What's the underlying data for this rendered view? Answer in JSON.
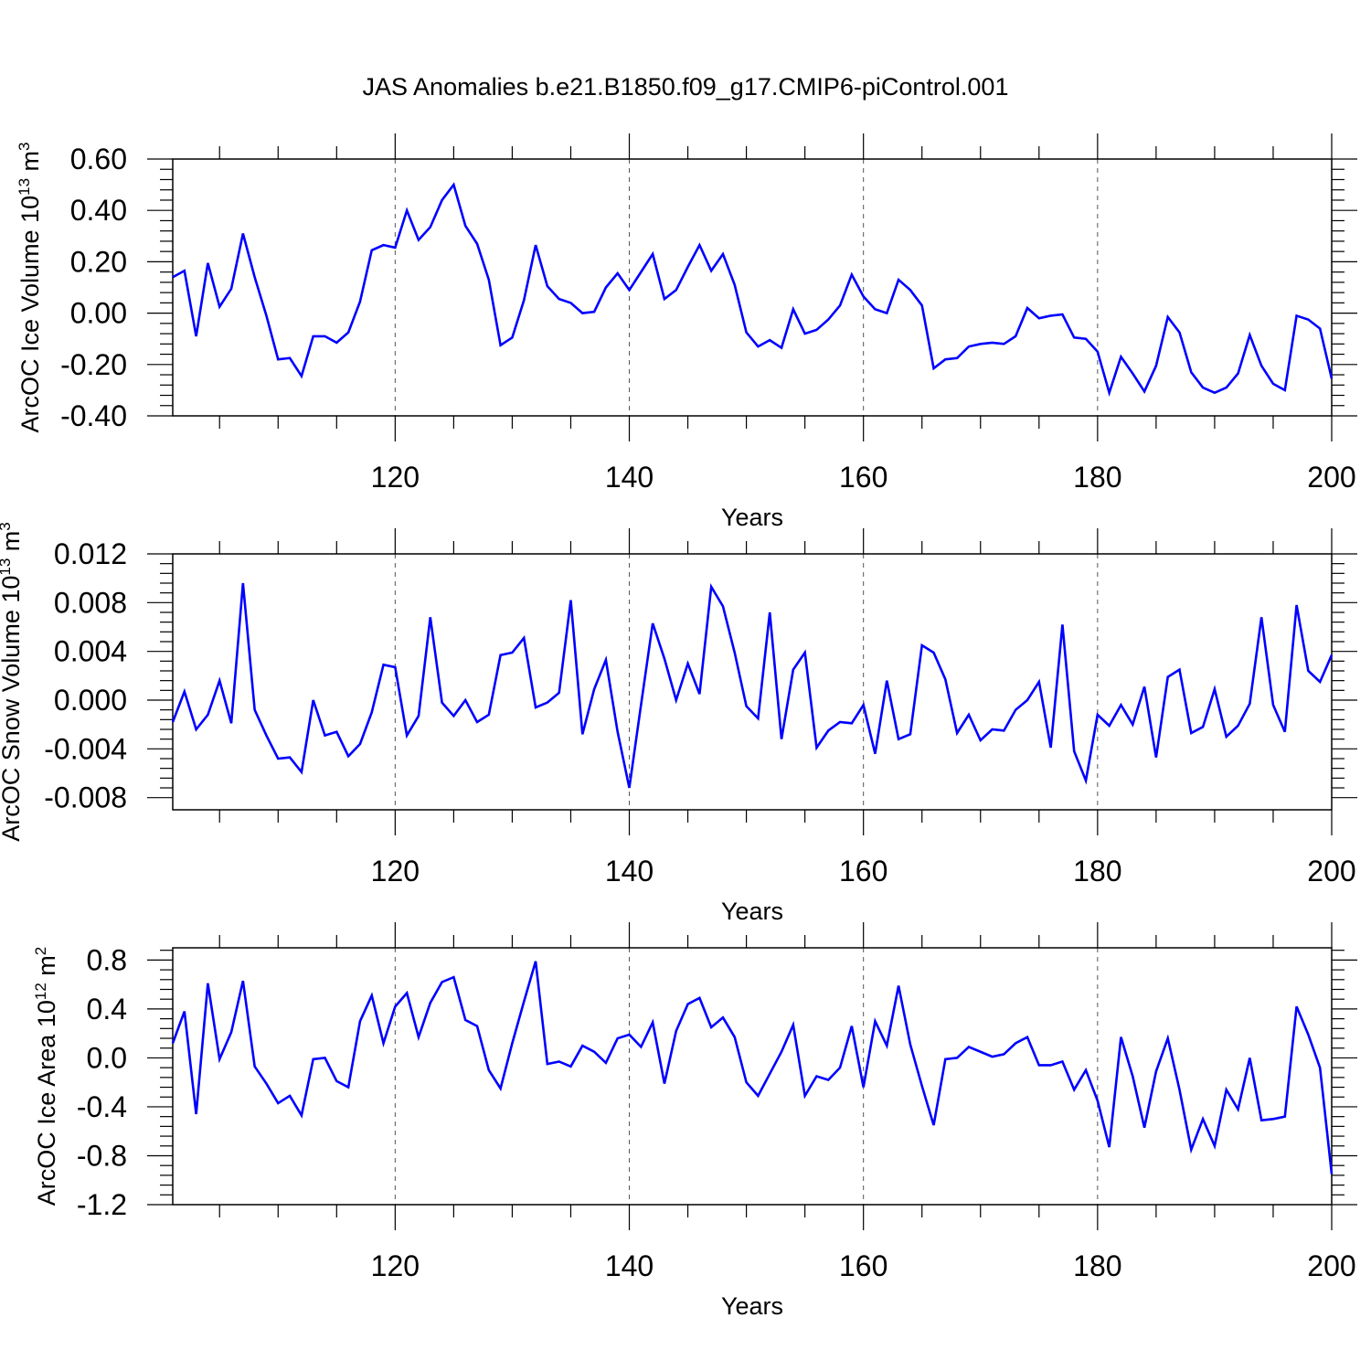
{
  "title": "JAS Anomalies b.e21.B1850.f09_g17.CMIP6-piControl.001",
  "chart_data": [
    {
      "type": "line",
      "title": "JAS Anomalies b.e21.B1850.f09_g17.CMIP6-piControl.001",
      "xlabel": "Years",
      "ylabel_main": "ArcOC Ice Volume 10",
      "ylabel_exp": "13",
      "ylabel_unit": " m",
      "ylabel_unit_exp": "3",
      "xlim": [
        101,
        200
      ],
      "ylim": [
        -0.4,
        0.6
      ],
      "yticks": [
        "0.60",
        "0.40",
        "0.20",
        "0.00",
        "-0.20",
        "-0.40"
      ],
      "ytick_values": [
        0.6,
        0.4,
        0.2,
        0.0,
        -0.2,
        -0.4
      ],
      "xticks": [
        "120",
        "140",
        "160",
        "180",
        "200"
      ],
      "xtick_values": [
        120,
        140,
        160,
        180,
        200
      ],
      "color": "#0000ff",
      "x_start": 101,
      "values": [
        0.14,
        0.165,
        -0.09,
        0.195,
        0.025,
        0.095,
        0.31,
        0.14,
        -0.01,
        -0.18,
        -0.175,
        -0.245,
        -0.09,
        -0.09,
        -0.115,
        -0.075,
        0.045,
        0.245,
        0.265,
        0.255,
        0.4,
        0.285,
        0.335,
        0.44,
        0.5,
        0.34,
        0.27,
        0.13,
        -0.125,
        -0.095,
        0.05,
        0.265,
        0.105,
        0.055,
        0.04,
        0.0,
        0.005,
        0.1,
        0.155,
        0.09,
        0.16,
        0.23,
        0.055,
        0.09,
        0.18,
        0.265,
        0.165,
        0.23,
        0.11,
        -0.075,
        -0.13,
        -0.105,
        -0.135,
        0.015,
        -0.08,
        -0.065,
        -0.025,
        0.03,
        0.15,
        0.065,
        0.015,
        0.0,
        0.13,
        0.09,
        0.03,
        -0.215,
        -0.18,
        -0.175,
        -0.13,
        -0.12,
        -0.115,
        -0.12,
        -0.09,
        0.02,
        -0.02,
        -0.01,
        -0.005,
        -0.095,
        -0.1,
        -0.15,
        -0.31,
        -0.17,
        -0.235,
        -0.305,
        -0.205,
        -0.015,
        -0.075,
        -0.23,
        -0.29,
        -0.31,
        -0.29,
        -0.235,
        -0.085,
        -0.205,
        -0.275,
        -0.3,
        -0.01,
        -0.025,
        -0.06,
        -0.255
      ]
    },
    {
      "type": "line",
      "xlabel": "Years",
      "ylabel_main": "ArcOC Snow Volume 10",
      "ylabel_exp": "13",
      "ylabel_unit": " m",
      "ylabel_unit_exp": "3",
      "xlim": [
        101,
        200
      ],
      "ylim": [
        -0.009,
        0.012
      ],
      "yticks": [
        "0.012",
        "0.008",
        "0.004",
        "0.000",
        "-0.004",
        "-0.008"
      ],
      "ytick_values": [
        0.012,
        0.008,
        0.004,
        0.0,
        -0.004,
        -0.008
      ],
      "xticks": [
        "120",
        "140",
        "160",
        "180",
        "200"
      ],
      "xtick_values": [
        120,
        140,
        160,
        180,
        200
      ],
      "color": "#0000ff",
      "x_start": 101,
      "values": [
        -0.0018,
        0.0007,
        -0.0024,
        -0.0012,
        0.0016,
        -0.0019,
        0.0096,
        -0.0008,
        -0.0029,
        -0.0048,
        -0.0047,
        -0.0059,
        0.0,
        -0.0029,
        -0.0026,
        -0.0046,
        -0.0036,
        -0.001,
        0.0029,
        0.0027,
        -0.0029,
        -0.0013,
        0.0068,
        -0.0002,
        -0.0013,
        0.0,
        -0.0018,
        -0.0012,
        0.0037,
        0.0039,
        0.0051,
        -0.0006,
        -0.0002,
        0.0006,
        0.0082,
        -0.0028,
        0.0009,
        0.0033,
        -0.0026,
        -0.0072,
        -0.0004,
        0.0063,
        0.0034,
        0.0,
        0.003,
        0.0005,
        0.0093,
        0.0077,
        0.0039,
        -0.0005,
        -0.0015,
        0.0072,
        -0.0032,
        0.0025,
        0.0039,
        -0.0039,
        -0.0025,
        -0.0018,
        -0.0019,
        -0.0004,
        -0.0044,
        0.0016,
        -0.0032,
        -0.0028,
        0.0045,
        0.0039,
        0.0017,
        -0.0027,
        -0.0012,
        -0.0033,
        -0.0024,
        -0.0025,
        -0.0008,
        0.0,
        0.0015,
        -0.0039,
        0.0062,
        -0.0042,
        -0.0066,
        -0.0012,
        -0.0021,
        -0.0004,
        -0.002,
        0.0011,
        -0.0047,
        0.0019,
        0.0025,
        -0.0027,
        -0.0022,
        0.0009,
        -0.003,
        -0.0021,
        -0.0003,
        0.0068,
        -0.0004,
        -0.0026,
        0.0078,
        0.0024,
        0.0015,
        0.0037
      ]
    },
    {
      "type": "line",
      "xlabel": "Years",
      "ylabel_main": "ArcOC Ice Area 10",
      "ylabel_exp": "12",
      "ylabel_unit": " m",
      "ylabel_unit_exp": "2",
      "xlim": [
        101,
        200
      ],
      "ylim": [
        -1.2,
        0.9
      ],
      "yticks": [
        "0.8",
        "0.4",
        "0.0",
        "-0.4",
        "-0.8",
        "-1.2"
      ],
      "ytick_values": [
        0.8,
        0.4,
        0.0,
        -0.4,
        -0.8,
        -1.2
      ],
      "xticks": [
        "120",
        "140",
        "160",
        "180",
        "200"
      ],
      "xtick_values": [
        120,
        140,
        160,
        180,
        200
      ],
      "color": "#0000ff",
      "x_start": 101,
      "values": [
        0.12,
        0.38,
        -0.46,
        0.61,
        -0.01,
        0.21,
        0.63,
        -0.07,
        -0.21,
        -0.37,
        -0.31,
        -0.47,
        -0.01,
        0.0,
        -0.19,
        -0.24,
        0.3,
        0.51,
        0.12,
        0.42,
        0.53,
        0.17,
        0.45,
        0.62,
        0.66,
        0.31,
        0.26,
        -0.1,
        -0.25,
        0.12,
        0.46,
        0.79,
        -0.05,
        -0.03,
        -0.07,
        0.1,
        0.05,
        -0.04,
        0.16,
        0.19,
        0.09,
        0.29,
        -0.21,
        0.22,
        0.44,
        0.49,
        0.25,
        0.33,
        0.17,
        -0.2,
        -0.31,
        -0.13,
        0.05,
        0.27,
        -0.31,
        -0.15,
        -0.18,
        -0.08,
        0.26,
        -0.24,
        0.3,
        0.1,
        0.59,
        0.11,
        -0.23,
        -0.55,
        -0.01,
        0.0,
        0.09,
        0.05,
        0.01,
        0.03,
        0.12,
        0.17,
        -0.06,
        -0.06,
        -0.03,
        -0.26,
        -0.1,
        -0.35,
        -0.73,
        0.17,
        -0.15,
        -0.57,
        -0.11,
        0.16,
        -0.26,
        -0.75,
        -0.5,
        -0.72,
        -0.26,
        -0.42,
        0.0,
        -0.51,
        -0.5,
        -0.48,
        0.42,
        0.19,
        -0.08,
        -0.95
      ]
    }
  ]
}
